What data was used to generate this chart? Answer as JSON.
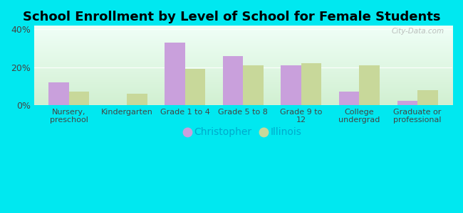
{
  "title": "School Enrollment by Level of School for Female Students",
  "categories": [
    "Nursery,\npreschool",
    "Kindergarten",
    "Grade 1 to 4",
    "Grade 5 to 8",
    "Grade 9 to\n12",
    "College\nundergrad",
    "Graduate or\nprofessional"
  ],
  "christopher": [
    12.0,
    0.0,
    33.0,
    26.0,
    21.0,
    7.0,
    2.0
  ],
  "illinois": [
    7.0,
    6.0,
    19.0,
    21.0,
    22.0,
    21.0,
    8.0
  ],
  "christopher_color": "#c9a0dc",
  "illinois_color": "#c8d89a",
  "background_outer": "#00e8f0",
  "ylim": [
    0,
    42
  ],
  "yticks": [
    0,
    20,
    40
  ],
  "ytick_labels": [
    "0%",
    "20%",
    "40%"
  ],
  "bar_width": 0.35,
  "title_fontsize": 13,
  "legend_labels": [
    "Christopher",
    "Illinois"
  ],
  "watermark": "City-Data.com",
  "tick_color": "#00ccdd",
  "label_fontsize": 8
}
